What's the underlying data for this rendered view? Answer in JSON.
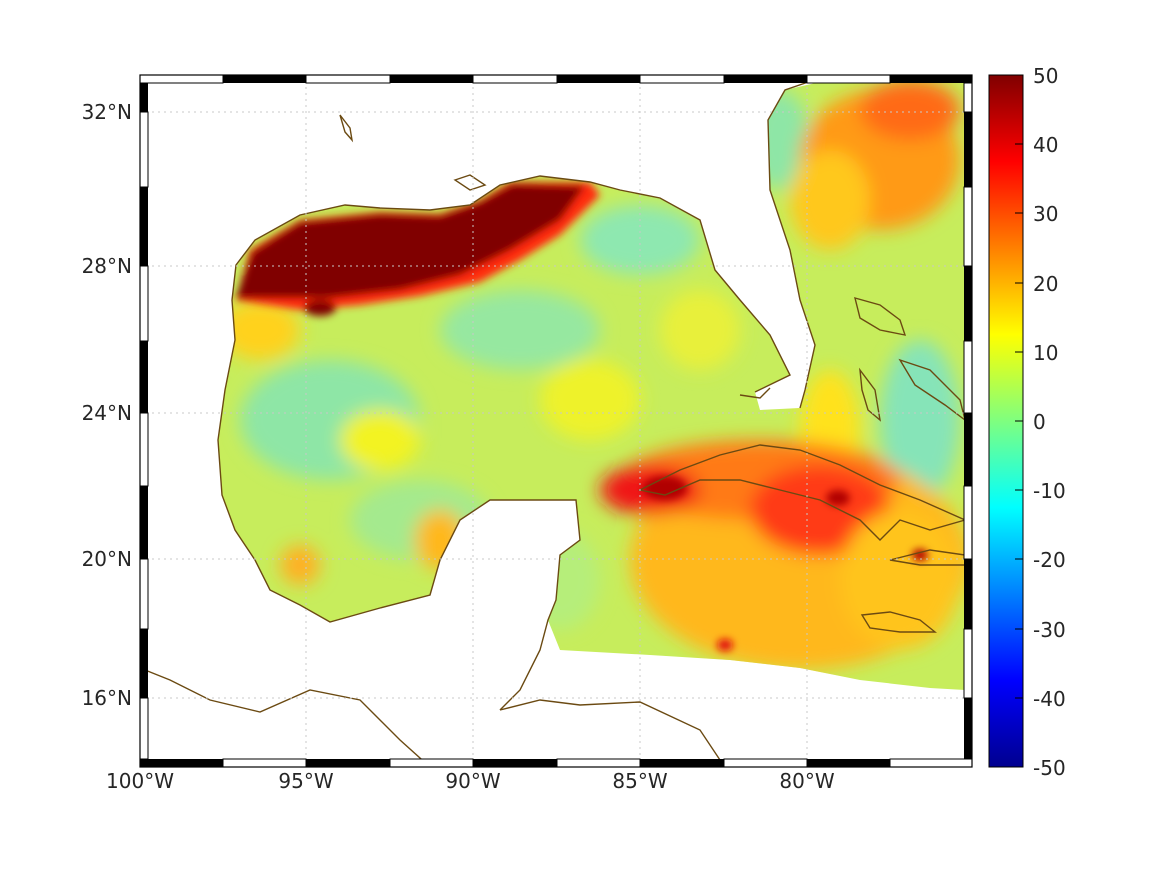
{
  "map": {
    "lon_ticks": [
      "100°W",
      "95°W",
      "90°W",
      "85°W",
      "80°W"
    ],
    "lat_ticks": [
      "32°N",
      "28°N",
      "24°N",
      "20°N",
      "16°N"
    ],
    "extent": {
      "lon": [
        -100,
        -75.2
      ],
      "lat": [
        14.2,
        32.9
      ]
    },
    "grid": true,
    "coastline_color": "#6b4a12"
  },
  "colorbar": {
    "ticks": [
      "50",
      "40",
      "30",
      "20",
      "10",
      "0",
      "-10",
      "-20",
      "-30",
      "-40",
      "-50"
    ],
    "range": [
      -50,
      50
    ],
    "colormap": "jet",
    "colors": [
      "#00008f",
      "#0000ff",
      "#00ffff",
      "#ffff00",
      "#ff0000",
      "#800000"
    ]
  }
}
